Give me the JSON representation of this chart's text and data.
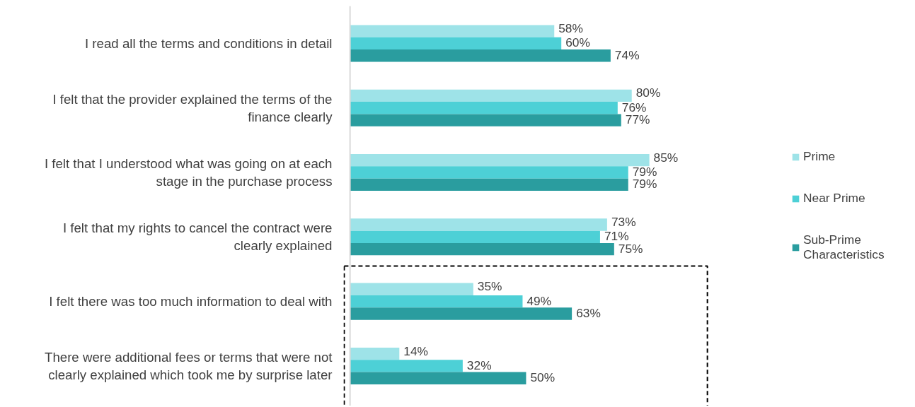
{
  "chart_data": {
    "type": "bar",
    "orientation": "horizontal",
    "categories": [
      "I read all the terms and conditions in detail",
      "I felt that the provider explained the terms of the finance clearly",
      "I felt that I understood what was going on at each stage in the purchase process",
      "I felt that my rights to cancel the contract were clearly explained",
      "I felt there was too much information to deal with",
      "There were additional fees or terms that were not clearly explained which took me by surprise later"
    ],
    "series": [
      {
        "name": "Prime",
        "color": "#9ee3e8",
        "values": [
          58,
          80,
          85,
          73,
          35,
          14
        ],
        "value_labels": [
          "58%",
          "80%",
          "85%",
          "73%",
          "35%",
          "14%"
        ]
      },
      {
        "name": "Near Prime",
        "color": "#4dd0d6",
        "values": [
          60,
          76,
          79,
          71,
          49,
          32
        ],
        "value_labels": [
          "60%",
          "76%",
          "79%",
          "71%",
          "49%",
          "32%"
        ]
      },
      {
        "name": "Sub-Prime Characteristics",
        "color": "#2a9d9f",
        "values": [
          74,
          77,
          79,
          75,
          63,
          50
        ],
        "value_labels": [
          "74%",
          "77%",
          "79%",
          "75%",
          "63%",
          "50%"
        ]
      }
    ],
    "legend": "right"
  }
}
